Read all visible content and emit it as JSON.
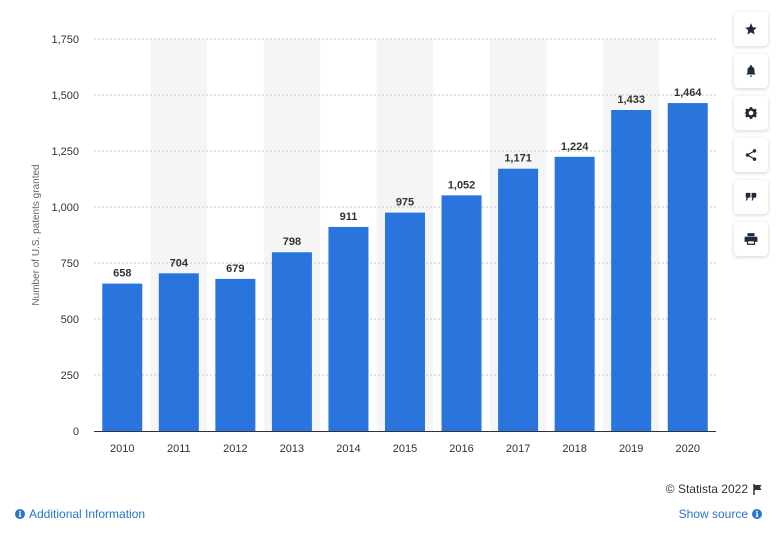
{
  "chart_data": {
    "type": "bar",
    "categories": [
      "2010",
      "2011",
      "2012",
      "2013",
      "2014",
      "2015",
      "2016",
      "2017",
      "2018",
      "2019",
      "2020"
    ],
    "values": [
      658,
      704,
      679,
      798,
      911,
      975,
      1052,
      1171,
      1224,
      1433,
      1464
    ],
    "data_labels": [
      "658",
      "704",
      "679",
      "798",
      "911",
      "975",
      "1,052",
      "1,171",
      "1,224",
      "1,433",
      "1,464"
    ],
    "ylabel": "Number of U.S. patents granted",
    "xlabel": "",
    "ylim": [
      0,
      1750
    ],
    "yticks": [
      0,
      250,
      500,
      750,
      1000,
      1250,
      1500,
      1750
    ],
    "ytick_labels": [
      "0",
      "250",
      "500",
      "750",
      "1,000",
      "1,250",
      "1,500",
      "1,750"
    ],
    "grid": true,
    "bar_color": "#2a74de",
    "band_color": "#f5f5f5"
  },
  "toolbar": {
    "buttons": [
      "star-icon",
      "bell-icon",
      "gear-icon",
      "share-icon",
      "quote-icon",
      "print-icon"
    ]
  },
  "footer": {
    "credit": "© Statista 2022",
    "additional_info": "Additional Information",
    "show_source": "Show source"
  }
}
